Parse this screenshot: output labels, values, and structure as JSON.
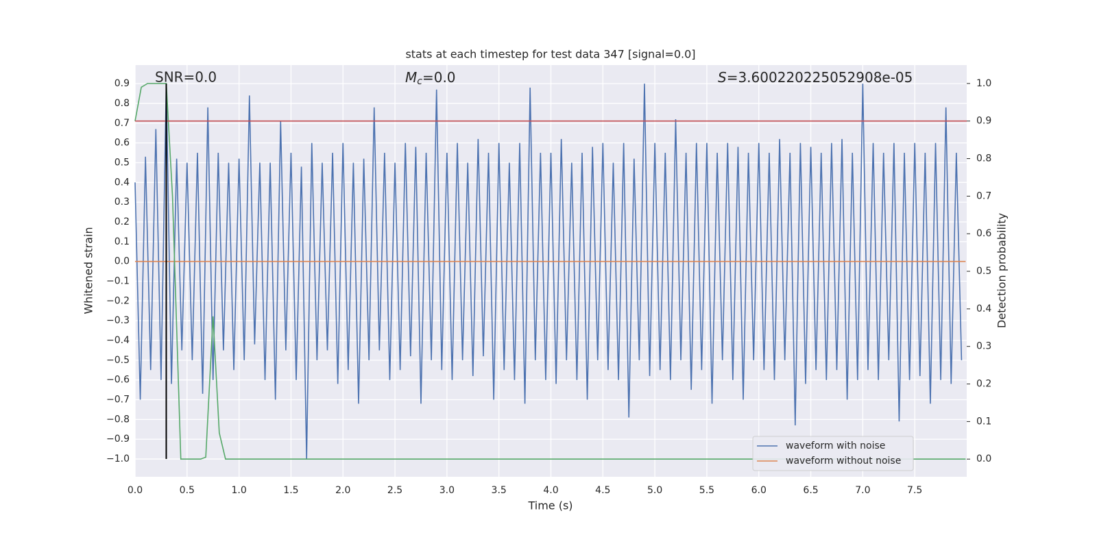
{
  "chart_data": {
    "type": "line",
    "title": "stats at each timestep for test data 347 [signal=0.0]",
    "xlabel": "Time (s)",
    "ylabel": "Whitened strain",
    "y2label": "Detection probability",
    "annotations": [
      {
        "text": "SNR=0.0"
      },
      {
        "symbol": "M",
        "subscript": "c",
        "text": "=0.0"
      },
      {
        "symbol": "S",
        "text": "=3.600220225052908e-05"
      }
    ],
    "xlim": [
      0,
      8.0
    ],
    "ylim": [
      -1.09,
      0.994
    ],
    "y2lim": [
      -0.047,
      1.049
    ],
    "grid": true,
    "legend": "lower right",
    "xticks": [
      {
        "value": 0,
        "label": "0.0"
      },
      0.5,
      {
        "value": 1,
        "label": "1.0"
      },
      1.5,
      {
        "value": 2,
        "label": "2.0"
      },
      2.5,
      {
        "value": 3,
        "label": "3.0"
      },
      3.5,
      {
        "value": 4,
        "label": "4.0"
      },
      4.5,
      {
        "value": 5,
        "label": "5.0"
      },
      5.5,
      {
        "value": 6,
        "label": "6.0"
      },
      6.5,
      {
        "value": 7,
        "label": "7.0"
      },
      7.5
    ],
    "yticks": [
      {
        "value": -1.0,
        "label": "−1.0"
      },
      {
        "value": -0.9,
        "label": "−0.9"
      },
      {
        "value": -0.8,
        "label": "−0.8"
      },
      {
        "value": -0.7,
        "label": "−0.7"
      },
      {
        "value": -0.6,
        "label": "−0.6"
      },
      {
        "value": -0.5,
        "label": "−0.5"
      },
      {
        "value": -0.4,
        "label": "−0.4"
      },
      {
        "value": -0.3,
        "label": "−0.3"
      },
      {
        "value": -0.2,
        "label": "−0.2"
      },
      {
        "value": -0.1,
        "label": "−0.1"
      },
      {
        "value": 0,
        "label": "0.0"
      },
      0.1,
      0.2,
      0.3,
      0.4,
      0.5,
      0.6,
      0.7,
      0.8,
      0.9
    ],
    "y2ticks": [
      {
        "value": 0,
        "label": "0.0"
      },
      0.1,
      0.2,
      0.3,
      0.4,
      0.5,
      0.6,
      0.7,
      0.8,
      0.9,
      {
        "value": 1,
        "label": "1.0"
      }
    ],
    "series": [
      {
        "name": "waveform with noise",
        "color": "#4c72b0",
        "x": [
          0,
          0.05,
          0.1,
          0.15,
          0.2,
          0.25,
          0.3,
          0.35,
          0.4,
          0.45,
          0.5,
          0.55,
          0.6,
          0.65,
          0.7,
          0.75,
          0.8,
          0.85,
          0.9,
          0.95,
          1,
          1.05,
          1.1,
          1.15,
          1.2,
          1.25,
          1.3,
          1.35,
          1.4,
          1.45,
          1.5,
          1.55,
          1.6,
          1.65,
          1.7,
          1.75,
          1.8,
          1.85,
          1.9,
          1.95,
          2,
          2.05,
          2.1,
          2.15,
          2.2,
          2.25,
          2.3,
          2.35,
          2.4,
          2.45,
          2.5,
          2.55,
          2.6,
          2.65,
          2.7,
          2.75,
          2.8,
          2.85,
          2.9,
          2.95,
          3,
          3.05,
          3.1,
          3.15,
          3.2,
          3.25,
          3.3,
          3.35,
          3.4,
          3.45,
          3.5,
          3.55,
          3.6,
          3.65,
          3.7,
          3.75,
          3.8,
          3.85,
          3.9,
          3.95,
          4,
          4.05,
          4.1,
          4.15,
          4.2,
          4.25,
          4.3,
          4.35,
          4.4,
          4.45,
          4.5,
          4.55,
          4.6,
          4.65,
          4.7,
          4.75,
          4.8,
          4.85,
          4.9,
          4.95,
          5,
          5.05,
          5.1,
          5.15,
          5.2,
          5.25,
          5.3,
          5.35,
          5.4,
          5.45,
          5.5,
          5.55,
          5.6,
          5.65,
          5.7,
          5.75,
          5.8,
          5.85,
          5.9,
          5.95,
          6,
          6.05,
          6.1,
          6.15,
          6.2,
          6.25,
          6.3,
          6.35,
          6.4,
          6.45,
          6.5,
          6.55,
          6.6,
          6.65,
          6.7,
          6.75,
          6.8,
          6.85,
          6.9,
          6.95,
          7,
          7.05,
          7.1,
          7.15,
          7.2,
          7.25,
          7.3,
          7.35,
          7.4,
          7.45,
          7.5,
          7.55,
          7.6,
          7.65,
          7.7,
          7.75,
          7.8,
          7.85,
          7.9,
          7.95
        ],
        "values": [
          0.4,
          -0.7,
          0.53,
          -0.55,
          0.67,
          -0.6,
          0.9,
          -0.62,
          0.52,
          -0.45,
          0.5,
          -0.5,
          0.55,
          -0.67,
          0.78,
          -0.6,
          0.55,
          -0.45,
          0.5,
          -0.55,
          0.52,
          -0.5,
          0.84,
          -0.42,
          0.5,
          -0.6,
          0.5,
          -0.7,
          0.71,
          -0.45,
          0.55,
          -0.6,
          0.48,
          -1.0,
          0.6,
          -0.5,
          0.5,
          -0.45,
          0.55,
          -0.62,
          0.6,
          -0.55,
          0.5,
          -0.72,
          0.52,
          -0.5,
          0.78,
          -0.45,
          0.55,
          -0.6,
          0.5,
          -0.55,
          0.6,
          -0.48,
          0.58,
          -0.72,
          0.55,
          -0.5,
          0.87,
          -0.55,
          0.55,
          -0.6,
          0.6,
          -0.5,
          0.5,
          -0.58,
          0.62,
          -0.48,
          0.55,
          -0.7,
          0.6,
          -0.55,
          0.5,
          -0.6,
          0.6,
          -0.72,
          0.88,
          -0.5,
          0.55,
          -0.6,
          0.55,
          -0.62,
          0.62,
          -0.5,
          0.5,
          -0.6,
          0.55,
          -0.7,
          0.58,
          -0.5,
          0.6,
          -0.55,
          0.5,
          -0.6,
          0.6,
          -0.79,
          0.52,
          -0.5,
          0.9,
          -0.58,
          0.6,
          -0.55,
          0.55,
          -0.6,
          0.72,
          -0.5,
          0.55,
          -0.65,
          0.6,
          -0.55,
          0.6,
          -0.72,
          0.55,
          -0.5,
          0.6,
          -0.6,
          0.58,
          -0.7,
          0.55,
          -0.5,
          0.6,
          -0.55,
          0.55,
          -0.6,
          0.62,
          -0.5,
          0.55,
          -0.83,
          0.6,
          -0.62,
          0.58,
          -0.55,
          0.55,
          -0.6,
          0.6,
          -0.55,
          0.62,
          -0.7,
          0.55,
          -0.6,
          0.9,
          -0.55,
          0.6,
          -0.6,
          0.55,
          -0.5,
          0.6,
          -0.81,
          0.55,
          -0.6,
          0.6,
          -0.58,
          0.55,
          -0.72,
          0.6,
          -0.6,
          0.78,
          -0.62,
          0.55,
          -0.5
        ]
      },
      {
        "name": "waveform without noise",
        "color": "#dd8452",
        "x": [
          0,
          7.99
        ],
        "values": [
          0,
          0
        ]
      },
      {
        "color": "#55a868",
        "axis": "y2",
        "x": [
          0,
          0.06,
          0.12,
          0.3,
          0.36,
          0.44,
          0.63,
          0.68,
          0.75,
          0.81,
          0.87,
          7.99
        ],
        "values": [
          0.9,
          0.99,
          1.0,
          1.0,
          0.7,
          0.0,
          0.0,
          0.005,
          0.38,
          0.07,
          0.0,
          0.0
        ]
      }
    ],
    "hlines": [
      {
        "value": 0.9,
        "axis": "y2",
        "color": "#c44e52"
      }
    ],
    "vlines": [
      {
        "value": 0.3,
        "ymin": -1.0,
        "ymax": 0.9,
        "color": "#000000"
      }
    ]
  }
}
